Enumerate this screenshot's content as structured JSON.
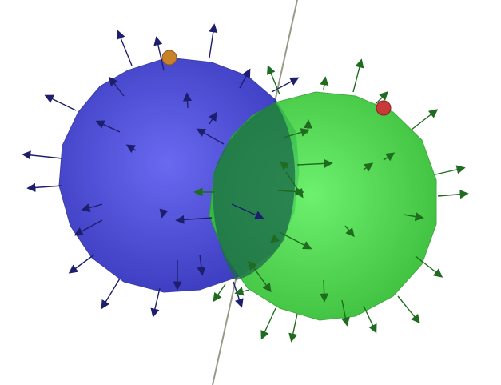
{
  "scene": {
    "background": "#ffffff",
    "spheres": [
      {
        "name": "blue-sphere",
        "color": "#3a3ad6",
        "edge": "#2a2aa0",
        "arrow_color": "#1e1e6e"
      },
      {
        "name": "green-sphere",
        "color": "#3ad63a",
        "edge": "#28a028",
        "arrow_color": "#1f6b1f"
      }
    ],
    "marker_orange": "#c8822a",
    "marker_red": "#c83a3a",
    "axis_line_color": "#9a9a88"
  }
}
